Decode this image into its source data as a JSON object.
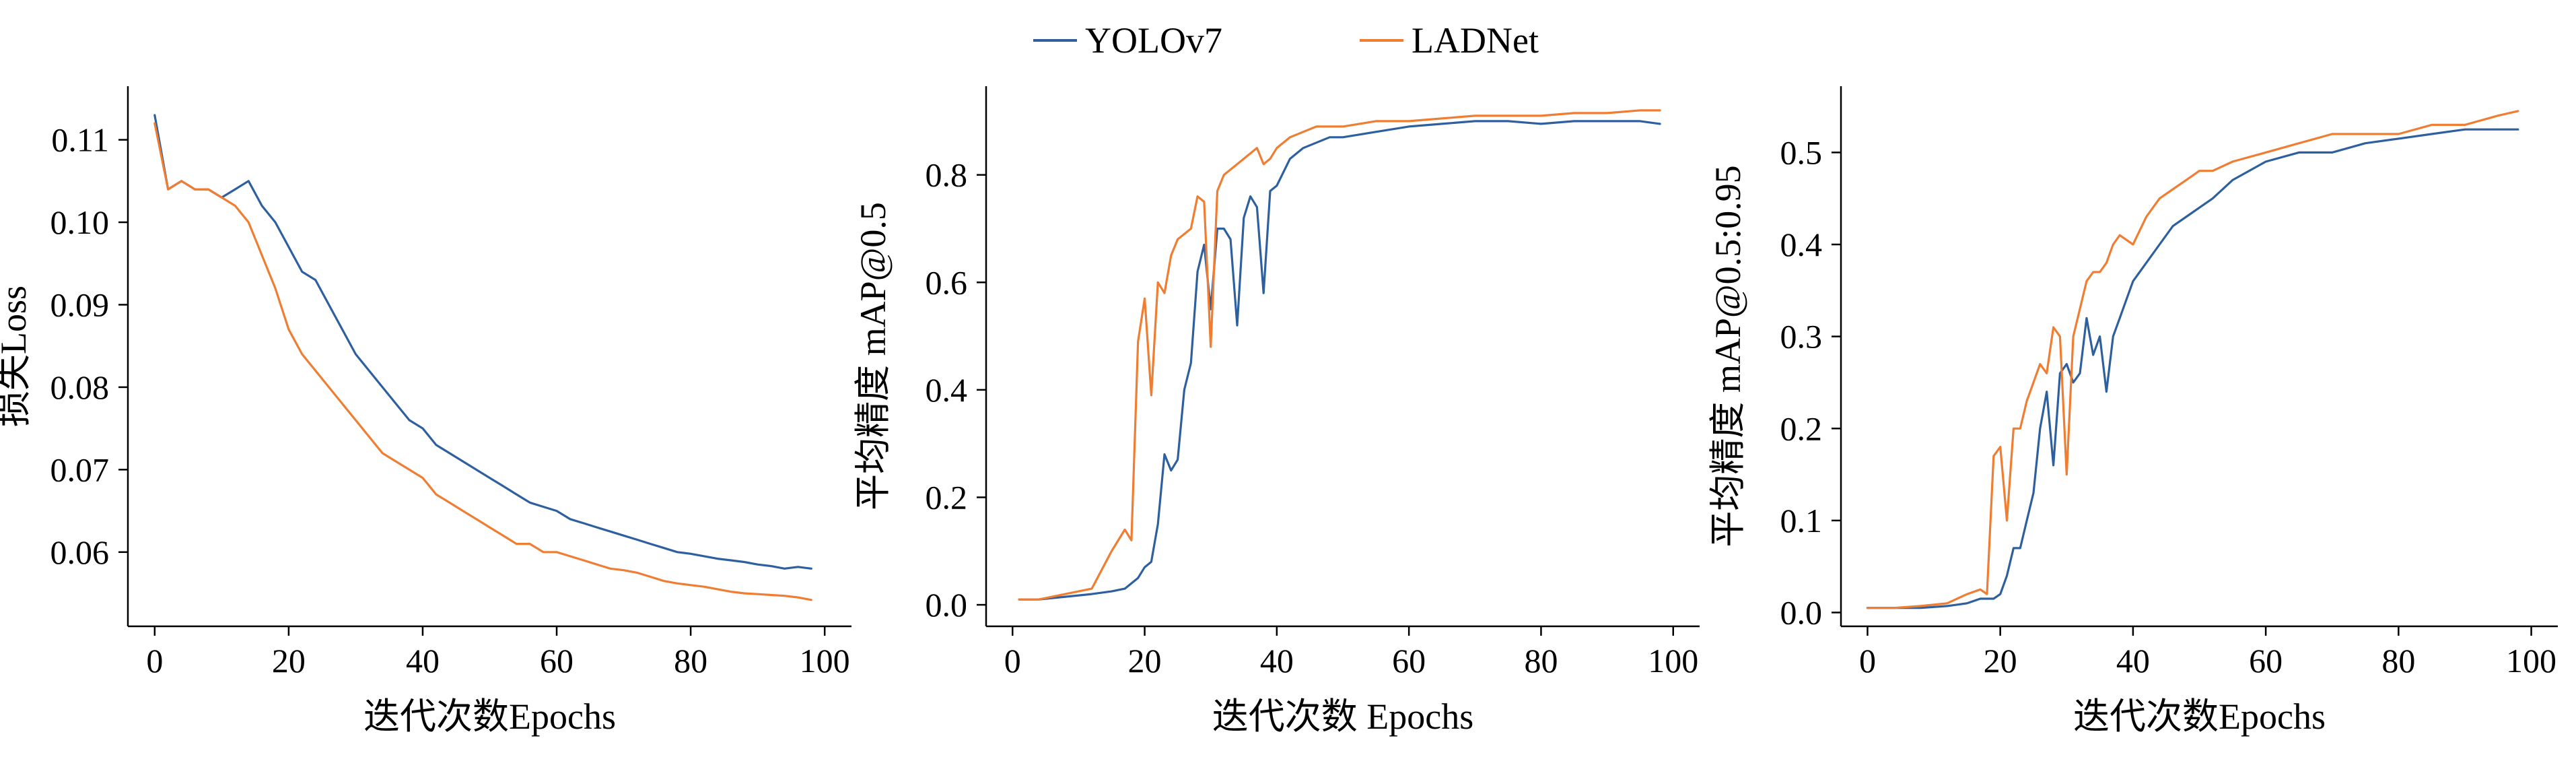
{
  "legend": [
    {
      "name": "YOLOv7",
      "color": "#2e5f9e"
    },
    {
      "name": "LADNet",
      "color": "#ef7d32"
    }
  ],
  "chart_data": [
    {
      "type": "line",
      "title": "",
      "xlabel": "迭代次数Epochs",
      "ylabel": "损失Loss",
      "xlim": [
        -4,
        104
      ],
      "ylim": [
        0.051,
        0.1165
      ],
      "xticks": [
        0,
        20,
        40,
        60,
        80,
        100
      ],
      "xtick_labels": [
        "0",
        "20",
        "40",
        "60",
        "80",
        "100"
      ],
      "yticks": [
        0.06,
        0.07,
        0.08,
        0.09,
        0.1,
        0.11
      ],
      "ytick_labels": [
        "0.06",
        "0.07",
        "0.08",
        "0.09",
        "0.10",
        "0.11"
      ],
      "grid": false,
      "series": [
        {
          "name": "YOLOv7",
          "color": "#2e5f9e",
          "x": [
            0,
            2,
            4,
            6,
            8,
            10,
            12,
            14,
            16,
            18,
            20,
            22,
            24,
            26,
            28,
            30,
            32,
            34,
            36,
            38,
            40,
            42,
            44,
            46,
            48,
            50,
            52,
            54,
            56,
            58,
            60,
            62,
            64,
            66,
            68,
            70,
            72,
            74,
            76,
            78,
            80,
            82,
            84,
            86,
            88,
            90,
            92,
            94,
            96,
            98
          ],
          "y": [
            0.113,
            0.104,
            0.105,
            0.104,
            0.104,
            0.103,
            0.104,
            0.105,
            0.102,
            0.1,
            0.097,
            0.094,
            0.093,
            0.09,
            0.087,
            0.084,
            0.082,
            0.08,
            0.078,
            0.076,
            0.075,
            0.073,
            0.072,
            0.071,
            0.07,
            0.069,
            0.068,
            0.067,
            0.066,
            0.0655,
            0.065,
            0.064,
            0.0635,
            0.063,
            0.0625,
            0.062,
            0.0615,
            0.061,
            0.0605,
            0.06,
            0.0598,
            0.0595,
            0.0592,
            0.059,
            0.0588,
            0.0585,
            0.0583,
            0.058,
            0.0582,
            0.058
          ]
        },
        {
          "name": "LADNet",
          "color": "#ef7d32",
          "x": [
            0,
            2,
            4,
            6,
            8,
            10,
            12,
            14,
            16,
            18,
            20,
            22,
            24,
            26,
            28,
            30,
            32,
            34,
            36,
            38,
            40,
            42,
            44,
            46,
            48,
            50,
            52,
            54,
            56,
            58,
            60,
            62,
            64,
            66,
            68,
            70,
            72,
            74,
            76,
            78,
            80,
            82,
            84,
            86,
            88,
            90,
            92,
            94,
            96,
            98
          ],
          "y": [
            0.112,
            0.104,
            0.105,
            0.104,
            0.104,
            0.103,
            0.102,
            0.1,
            0.096,
            0.092,
            0.087,
            0.084,
            0.082,
            0.08,
            0.078,
            0.076,
            0.074,
            0.072,
            0.071,
            0.07,
            0.069,
            0.067,
            0.066,
            0.065,
            0.064,
            0.063,
            0.062,
            0.061,
            0.061,
            0.06,
            0.06,
            0.0595,
            0.059,
            0.0585,
            0.058,
            0.0578,
            0.0575,
            0.057,
            0.0565,
            0.0562,
            0.056,
            0.0558,
            0.0555,
            0.0552,
            0.055,
            0.0549,
            0.0548,
            0.0547,
            0.0545,
            0.0542
          ]
        }
      ]
    },
    {
      "type": "line",
      "title": "",
      "xlabel": "迭代次数 Epochs",
      "ylabel": "平均精度  mAP@0.5",
      "xlim": [
        -4,
        104
      ],
      "ylim": [
        -0.04,
        0.965
      ],
      "xticks": [
        0,
        20,
        40,
        60,
        80,
        100
      ],
      "xtick_labels": [
        "0",
        "20",
        "40",
        "60",
        "80",
        "100"
      ],
      "yticks": [
        0.0,
        0.2,
        0.4,
        0.6,
        0.8
      ],
      "ytick_labels": [
        "0.0",
        "0.2",
        "0.4",
        "0.6",
        "0.8"
      ],
      "grid": false,
      "series": [
        {
          "name": "YOLOv7",
          "color": "#2e5f9e",
          "x": [
            1,
            4,
            8,
            12,
            15,
            17,
            19,
            20,
            21,
            22,
            23,
            24,
            25,
            26,
            27,
            28,
            29,
            30,
            31,
            32,
            33,
            34,
            35,
            36,
            37,
            38,
            39,
            40,
            42,
            44,
            46,
            48,
            50,
            55,
            60,
            65,
            70,
            75,
            80,
            85,
            90,
            95,
            98
          ],
          "y": [
            0.01,
            0.01,
            0.015,
            0.02,
            0.025,
            0.03,
            0.05,
            0.07,
            0.08,
            0.15,
            0.28,
            0.25,
            0.27,
            0.4,
            0.45,
            0.62,
            0.67,
            0.55,
            0.7,
            0.7,
            0.68,
            0.52,
            0.72,
            0.76,
            0.74,
            0.58,
            0.77,
            0.78,
            0.83,
            0.85,
            0.86,
            0.87,
            0.87,
            0.88,
            0.89,
            0.895,
            0.9,
            0.9,
            0.895,
            0.9,
            0.9,
            0.9,
            0.895
          ]
        },
        {
          "name": "LADNet",
          "color": "#ef7d32",
          "x": [
            1,
            4,
            8,
            12,
            15,
            17,
            18,
            19,
            20,
            21,
            22,
            23,
            24,
            25,
            26,
            27,
            28,
            29,
            30,
            31,
            32,
            33,
            34,
            35,
            36,
            37,
            38,
            39,
            40,
            42,
            44,
            46,
            48,
            50,
            55,
            60,
            65,
            70,
            75,
            80,
            85,
            90,
            95,
            98
          ],
          "y": [
            0.01,
            0.01,
            0.02,
            0.03,
            0.1,
            0.14,
            0.12,
            0.49,
            0.57,
            0.39,
            0.6,
            0.58,
            0.65,
            0.68,
            0.69,
            0.7,
            0.76,
            0.75,
            0.48,
            0.77,
            0.8,
            0.81,
            0.82,
            0.83,
            0.84,
            0.85,
            0.82,
            0.83,
            0.85,
            0.87,
            0.88,
            0.89,
            0.89,
            0.89,
            0.9,
            0.9,
            0.905,
            0.91,
            0.91,
            0.91,
            0.915,
            0.915,
            0.92,
            0.92
          ]
        }
      ]
    },
    {
      "type": "line",
      "title": "",
      "xlabel": "迭代次数Epochs",
      "ylabel": "平均精度  mAP@0.5:0.95",
      "xlim": [
        -4,
        104
      ],
      "ylim": [
        -0.015,
        0.572
      ],
      "xticks": [
        0,
        20,
        40,
        60,
        80,
        100
      ],
      "xtick_labels": [
        "0",
        "20",
        "40",
        "60",
        "80",
        "100"
      ],
      "yticks": [
        0.0,
        0.1,
        0.2,
        0.3,
        0.4,
        0.5
      ],
      "ytick_labels": [
        "0.0",
        "0.1",
        "0.2",
        "0.3",
        "0.4",
        "0.5"
      ],
      "grid": false,
      "series": [
        {
          "name": "YOLOv7",
          "color": "#2e5f9e",
          "x": [
            0,
            4,
            8,
            12,
            15,
            17,
            19,
            20,
            21,
            22,
            23,
            24,
            25,
            26,
            27,
            28,
            29,
            30,
            31,
            32,
            33,
            34,
            35,
            36,
            37,
            38,
            39,
            40,
            42,
            44,
            46,
            48,
            50,
            52,
            55,
            60,
            65,
            70,
            75,
            80,
            85,
            90,
            95,
            98
          ],
          "y": [
            0.005,
            0.005,
            0.005,
            0.007,
            0.01,
            0.015,
            0.015,
            0.02,
            0.04,
            0.07,
            0.07,
            0.1,
            0.13,
            0.2,
            0.24,
            0.16,
            0.26,
            0.27,
            0.25,
            0.26,
            0.32,
            0.28,
            0.3,
            0.24,
            0.3,
            0.32,
            0.34,
            0.36,
            0.38,
            0.4,
            0.42,
            0.43,
            0.44,
            0.45,
            0.47,
            0.49,
            0.5,
            0.5,
            0.51,
            0.515,
            0.52,
            0.525,
            0.525,
            0.525
          ]
        },
        {
          "name": "LADNet",
          "color": "#ef7d32",
          "x": [
            0,
            4,
            8,
            12,
            15,
            17,
            18,
            19,
            20,
            21,
            22,
            23,
            24,
            25,
            26,
            27,
            28,
            29,
            30,
            31,
            32,
            33,
            34,
            35,
            36,
            37,
            38,
            40,
            42,
            44,
            46,
            48,
            50,
            52,
            55,
            60,
            65,
            70,
            75,
            80,
            85,
            90,
            95,
            98
          ],
          "y": [
            0.005,
            0.005,
            0.007,
            0.01,
            0.02,
            0.025,
            0.02,
            0.17,
            0.18,
            0.1,
            0.2,
            0.2,
            0.23,
            0.25,
            0.27,
            0.26,
            0.31,
            0.3,
            0.15,
            0.3,
            0.33,
            0.36,
            0.37,
            0.37,
            0.38,
            0.4,
            0.41,
            0.4,
            0.43,
            0.45,
            0.46,
            0.47,
            0.48,
            0.48,
            0.49,
            0.5,
            0.51,
            0.52,
            0.52,
            0.52,
            0.53,
            0.53,
            0.54,
            0.545
          ]
        }
      ]
    }
  ]
}
